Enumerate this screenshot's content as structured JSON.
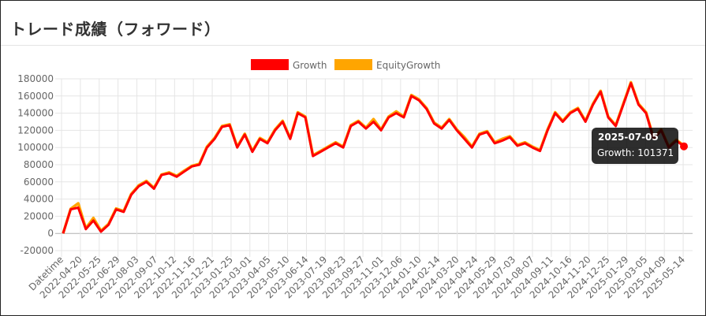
{
  "page": {
    "title": "トレード成績（フォワード）"
  },
  "tooltip": {
    "title": "2025-07-05",
    "series": "Growth",
    "value": "101371"
  },
  "chart_data": {
    "type": "line",
    "legend_position": "top",
    "grid": true,
    "series": [
      {
        "name": "Growth",
        "color": "#ff0000",
        "values": [
          0,
          28000,
          30000,
          5000,
          15000,
          2000,
          10000,
          28000,
          25000,
          45000,
          55000,
          60000,
          52000,
          68000,
          70000,
          66000,
          72000,
          78000,
          80000,
          100000,
          110000,
          124000,
          126000,
          100000,
          115000,
          95000,
          110000,
          105000,
          120000,
          130000,
          110000,
          140000,
          135000,
          90000,
          95000,
          100000,
          105000,
          100000,
          125000,
          130000,
          122000,
          130000,
          120000,
          135000,
          140000,
          135000,
          160000,
          155000,
          145000,
          128000,
          122000,
          132000,
          120000,
          110000,
          100000,
          115000,
          118000,
          105000,
          108000,
          112000,
          102000,
          105000,
          100000,
          96000,
          120000,
          140000,
          130000,
          140000,
          145000,
          130000,
          150000,
          165000,
          135000,
          125000,
          150000,
          175000,
          150000,
          140000,
          110000,
          120000,
          100000,
          108000,
          101371
        ]
      },
      {
        "name": "EquityGrowth",
        "color": "#ffa500",
        "values": [
          0,
          28500,
          35000,
          6000,
          18000,
          3000,
          11000,
          29000,
          26000,
          46000,
          56000,
          61000,
          53000,
          68500,
          71000,
          67000,
          73000,
          78500,
          81000,
          101000,
          111000,
          125000,
          127000,
          101000,
          116000,
          96000,
          111000,
          106000,
          121000,
          131000,
          111000,
          141000,
          136000,
          91000,
          96000,
          101000,
          106000,
          101000,
          126000,
          131000,
          123000,
          133000,
          121000,
          136000,
          142000,
          136000,
          161000,
          156000,
          146000,
          129000,
          123000,
          133000,
          121000,
          112000,
          101000,
          116000,
          119000,
          106000,
          110000,
          113000,
          103000,
          106000,
          101000,
          97000,
          121000,
          141000,
          131000,
          141000,
          146000,
          131000,
          151000,
          166000,
          136000,
          126000,
          151000,
          176000,
          151000,
          141000,
          111000,
          121000,
          101000,
          109000,
          102000
        ]
      }
    ],
    "ylim": [
      -20000,
      180000
    ],
    "y_ticks": [
      "180000",
      "160000",
      "140000",
      "120000",
      "100000",
      "80000",
      "60000",
      "40000",
      "20000",
      "0",
      "-20000"
    ],
    "x_ticks": [
      "Datetime",
      "2022-04-20",
      "2022-05-25",
      "2022-06-29",
      "2022-08-03",
      "2022-09-07",
      "2022-10-12",
      "2022-11-16",
      "2022-12-21",
      "2023-01-25",
      "2023-03-01",
      "2023-04-05",
      "2023-05-10",
      "2023-06-14",
      "2023-07-19",
      "2023-08-23",
      "2023-09-27",
      "2023-11-01",
      "2023-12-06",
      "2024-01-10",
      "2024-02-14",
      "2024-03-20",
      "2024-04-24",
      "2024-05-29",
      "2024-07-03",
      "2024-08-07",
      "2024-09-11",
      "2024-10-16",
      "2024-11-20",
      "2024-12-25",
      "2025-01-29",
      "2025-03-05",
      "2025-04-09",
      "2025-05-14"
    ]
  }
}
